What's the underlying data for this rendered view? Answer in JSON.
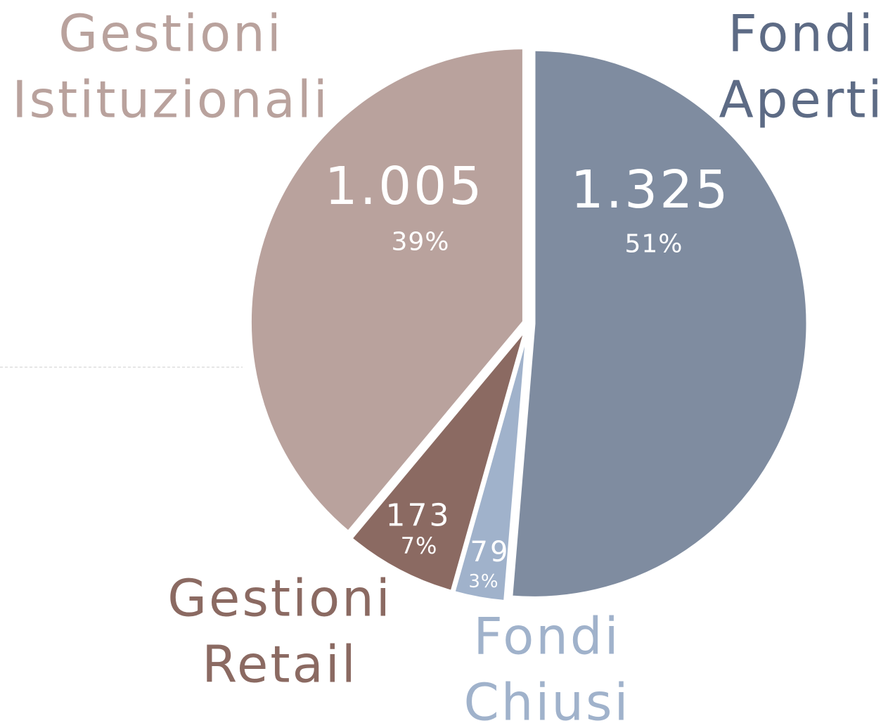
{
  "chart_data": {
    "type": "pie",
    "categories": [
      "Fondi Aperti",
      "Fondi Chiusi",
      "Gestioni Retail",
      "Gestioni Istituzionali"
    ],
    "values": [
      1325,
      79,
      173,
      1005
    ],
    "value_labels": [
      "1.325",
      "79",
      "173",
      "1.005"
    ],
    "percentages": [
      {
        "value": 51,
        "label": "51%"
      },
      {
        "value": 3,
        "label": "3%"
      },
      {
        "value": 7,
        "label": "7%"
      },
      {
        "value": 39,
        "label": "39%"
      }
    ],
    "colors": [
      "#7f8ca0",
      "#a0b2cb",
      "#8b6a62",
      "#b9a29d"
    ],
    "label_colors": [
      "#5d6b85",
      "#a0b2cb",
      "#8b6a62",
      "#b9a29d"
    ]
  }
}
